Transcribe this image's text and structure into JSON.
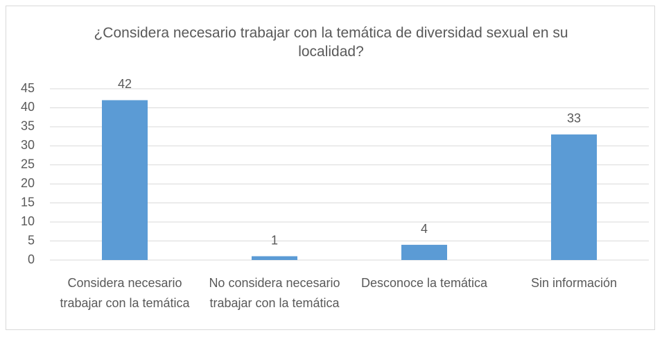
{
  "chart_data": {
    "type": "bar",
    "title": "¿Considera necesario trabajar con la temática de diversidad sexual en su localidad?",
    "categories": [
      "Considera necesario trabajar con la temática",
      "No considera necesario trabajar con la temática",
      "Desconoce la temática",
      "Sin información"
    ],
    "values": [
      42,
      1,
      4,
      33
    ],
    "color": "#5b9bd5",
    "ylim": [
      0,
      45
    ],
    "yticks": [
      0,
      5,
      10,
      15,
      20,
      25,
      30,
      35,
      40,
      45
    ],
    "grid": true
  }
}
